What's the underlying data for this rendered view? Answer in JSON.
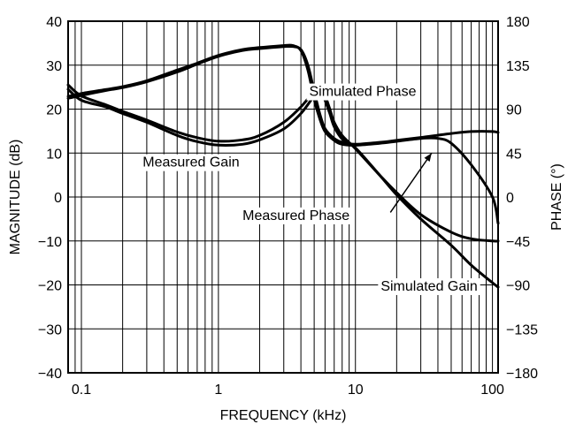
{
  "chart_data": {
    "type": "line",
    "title": "",
    "xlabel": "FREQUENCY (kHz)",
    "ylabel": "MAGNITUDE (dB)",
    "y2label": "PHASE (°)",
    "xscale": "log",
    "xlim": [
      0.08,
      110
    ],
    "ylim": [
      -40,
      40
    ],
    "y2lim": [
      -180,
      180
    ],
    "grid": true,
    "xticks": [
      {
        "value": 0.1,
        "label": "0.1"
      },
      {
        "value": 1,
        "label": "1"
      },
      {
        "value": 10,
        "label": "10"
      },
      {
        "value": 100,
        "label": "100"
      }
    ],
    "yticks": [
      {
        "value": 40,
        "label": "40"
      },
      {
        "value": 30,
        "label": "30"
      },
      {
        "value": 20,
        "label": "20"
      },
      {
        "value": 10,
        "label": "10"
      },
      {
        "value": 0,
        "label": "0"
      },
      {
        "value": -10,
        "label": "−10"
      },
      {
        "value": -20,
        "label": "−20"
      },
      {
        "value": -30,
        "label": "−30"
      },
      {
        "value": -40,
        "label": "−40"
      }
    ],
    "y2ticks": [
      {
        "value": 180,
        "label": "180"
      },
      {
        "value": 135,
        "label": "135"
      },
      {
        "value": 90,
        "label": "90"
      },
      {
        "value": 45,
        "label": "45"
      },
      {
        "value": 0,
        "label": "0"
      },
      {
        "value": -45,
        "label": "−45"
      },
      {
        "value": -90,
        "label": "−90"
      },
      {
        "value": -135,
        "label": "−135"
      },
      {
        "value": -180,
        "label": "−180"
      }
    ],
    "series": [
      {
        "name": "Measured Gain",
        "axis": "left",
        "x": [
          0.08,
          0.1,
          0.15,
          0.2,
          0.3,
          0.5,
          0.7,
          1,
          1.5,
          2,
          3,
          4,
          5,
          5.5,
          6,
          6.5,
          7,
          8,
          10,
          15,
          20,
          30,
          50,
          70,
          100,
          110
        ],
        "y": [
          24.5,
          22,
          20.5,
          19,
          17,
          14,
          12.6,
          11.8,
          12,
          13,
          15.5,
          19,
          23,
          24,
          23,
          20,
          17,
          14,
          11,
          5,
          1,
          -4,
          -8,
          -9.5,
          -10,
          -10
        ]
      },
      {
        "name": "Simulated Gain",
        "axis": "left",
        "x": [
          0.08,
          0.1,
          0.15,
          0.2,
          0.3,
          0.5,
          0.7,
          1,
          1.5,
          2,
          3,
          4,
          5,
          5.5,
          6,
          6.5,
          7,
          8,
          10,
          15,
          20,
          30,
          50,
          70,
          100,
          110
        ],
        "y": [
          25.5,
          23,
          21,
          19.5,
          17.5,
          14.8,
          13.5,
          12.7,
          13,
          14,
          17,
          20.5,
          24,
          24.2,
          22,
          19,
          16,
          13.2,
          11.2,
          5,
          0.5,
          -5,
          -11,
          -15.5,
          -19.5,
          -20.5
        ]
      },
      {
        "name": "Measured Phase",
        "axis": "right",
        "x": [
          0.08,
          0.1,
          0.15,
          0.2,
          0.3,
          0.5,
          0.7,
          1,
          1.5,
          2,
          3,
          3.5,
          4,
          4.5,
          5,
          5.5,
          6,
          7,
          8,
          10,
          15,
          20,
          30,
          40,
          50,
          70,
          100,
          110
        ],
        "y": [
          103,
          106,
          110,
          113,
          119,
          130,
          137,
          145,
          151,
          153,
          155,
          155,
          150,
          130,
          100,
          80,
          67,
          58,
          54,
          53,
          55,
          57,
          60,
          60,
          55,
          33,
          0,
          -27
        ]
      },
      {
        "name": "Simulated Phase",
        "axis": "right",
        "x": [
          0.08,
          0.1,
          0.15,
          0.2,
          0.3,
          0.5,
          0.7,
          1,
          1.5,
          2,
          3,
          3.5,
          4,
          4.5,
          5,
          5.5,
          6,
          7,
          8,
          10,
          15,
          20,
          30,
          50,
          70,
          100,
          110
        ],
        "y": [
          101,
          104,
          109,
          112,
          118,
          128,
          136,
          144,
          150,
          152,
          154,
          154,
          151,
          135,
          108,
          85,
          70,
          60,
          56,
          54,
          56,
          58,
          61,
          65,
          67,
          67,
          66
        ]
      }
    ],
    "annotations": [
      {
        "text": "Simulated Phase",
        "x": 4.6,
        "y": 23
      },
      {
        "text": "Measured Gain",
        "x": 0.28,
        "y": 6.9
      },
      {
        "text": "Measured Phase",
        "x": 1.5,
        "y": -5.2
      },
      {
        "text": "Simulated Gain",
        "x": 15.3,
        "y": -21.3
      }
    ],
    "arrow": {
      "from_x": 18,
      "from_y": -3.5,
      "to_x": 36,
      "to_y": 10
    }
  }
}
